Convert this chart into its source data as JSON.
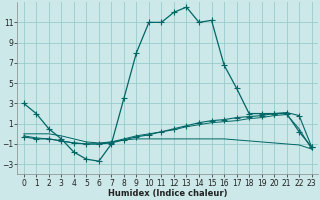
{
  "xlabel": "Humidex (Indice chaleur)",
  "bg_color": "#cce8e8",
  "grid_color": "#99cccc",
  "line_color": "#006666",
  "xlim": [
    -0.5,
    23.5
  ],
  "ylim": [
    -4,
    13
  ],
  "xticks": [
    0,
    1,
    2,
    3,
    4,
    5,
    6,
    7,
    8,
    9,
    10,
    11,
    12,
    13,
    14,
    15,
    16,
    17,
    18,
    19,
    20,
    21,
    22,
    23
  ],
  "yticks": [
    -3,
    -1,
    1,
    3,
    5,
    7,
    9,
    11
  ],
  "main_x": [
    0,
    1,
    2,
    3,
    4,
    5,
    6,
    7,
    8,
    9,
    10,
    11,
    12,
    13,
    14,
    15,
    16,
    17,
    18,
    19,
    20,
    21,
    22,
    23
  ],
  "main_y": [
    3,
    2,
    0.5,
    -0.5,
    -1.8,
    -2.5,
    -2.7,
    -1.0,
    3.5,
    8.0,
    11.0,
    11.0,
    12.0,
    12.5,
    11.0,
    11.2,
    6.8,
    4.5,
    2.0,
    2.0,
    2.0,
    2.0,
    0.2,
    -1.3
  ],
  "curve2_x": [
    0,
    1,
    2,
    3,
    4,
    5,
    6,
    7,
    8,
    9,
    10,
    11,
    12,
    13,
    14,
    15,
    16,
    17,
    18,
    19,
    20,
    21,
    22,
    23
  ],
  "curve2_y": [
    -0.3,
    -0.5,
    -0.5,
    -0.7,
    -0.9,
    -1.0,
    -1.0,
    -0.9,
    -0.6,
    -0.3,
    -0.1,
    0.2,
    0.5,
    0.8,
    1.1,
    1.3,
    1.4,
    1.6,
    1.7,
    1.8,
    2.0,
    2.1,
    1.8,
    -1.3
  ],
  "curve3_x": [
    0,
    1,
    2,
    3,
    4,
    5,
    6,
    7,
    8,
    9,
    10,
    11,
    12,
    13,
    14,
    15,
    16,
    17,
    18,
    19,
    20,
    21,
    22,
    23
  ],
  "curve3_y": [
    -0.2,
    -0.4,
    -0.5,
    -0.7,
    -0.9,
    -1.0,
    -1.0,
    -0.8,
    -0.5,
    -0.2,
    0.0,
    0.2,
    0.4,
    0.7,
    0.9,
    1.1,
    1.2,
    1.3,
    1.5,
    1.6,
    1.8,
    1.9,
    0.5,
    -1.5
  ],
  "curve4_x": [
    0,
    2,
    3,
    4,
    5,
    6,
    7,
    8,
    9,
    10,
    11,
    12,
    13,
    14,
    15,
    16,
    17,
    18,
    19,
    20,
    21,
    22,
    23
  ],
  "curve4_y": [
    0.0,
    0.0,
    -0.2,
    -0.5,
    -0.8,
    -0.9,
    -0.8,
    -0.6,
    -0.5,
    -0.5,
    -0.5,
    -0.5,
    -0.5,
    -0.5,
    -0.5,
    -0.5,
    -0.6,
    -0.7,
    -0.8,
    -0.9,
    -1.0,
    -1.1,
    -1.5
  ]
}
